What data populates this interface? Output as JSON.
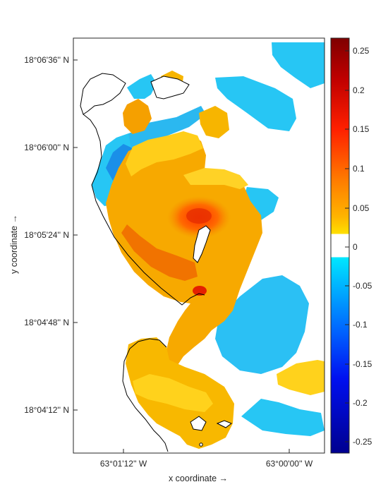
{
  "chart_data": {
    "type": "heatmap",
    "title": "",
    "xlabel": "x coordinate →",
    "ylabel": "y coordinate →",
    "x_ticks": [
      "63°01'12'' W",
      "63°00'00'' W"
    ],
    "y_ticks": [
      "18°06'36'' N",
      "18°06'00'' N",
      "18°05'24'' N",
      "18°04'48'' N",
      "18°04'12'' N"
    ],
    "colorbar": {
      "ticks": [
        "0.25",
        "0.2",
        "0.15",
        "0.1",
        "0.05",
        "0",
        "-0.05",
        "-0.1",
        "-0.15",
        "-0.2",
        "-0.25"
      ],
      "range": [
        -0.27,
        0.27
      ],
      "colormap": "jet-with-white-center"
    },
    "colors": {
      "max_red": "#7f0000",
      "red": "#ff2000",
      "orange": "#f58a00",
      "light_orange": "#f7b000",
      "yellow": "#ffd200",
      "zero": "#ffffff",
      "cyan": "#00d8ff",
      "light_blue": "#00b0ff",
      "blue": "#0070ff",
      "navy": "#00008f",
      "coastline": "#000000"
    }
  }
}
